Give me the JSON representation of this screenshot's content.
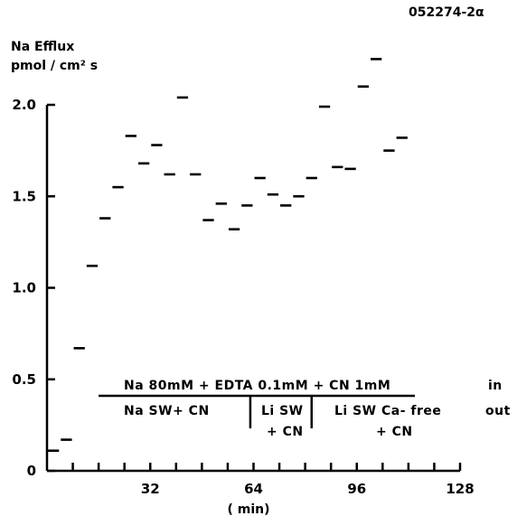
{
  "experiment_id": "052274-2α",
  "chart_data": {
    "type": "scatter",
    "mark": "horizontal-segment",
    "ylabel_line1": "Na Efflux",
    "ylabel_line2": "pmol / cm² s",
    "xlabel": "( min)",
    "xlim": [
      0,
      128
    ],
    "ylim": [
      0,
      2.0
    ],
    "x_ticks": [
      32,
      64,
      96,
      128
    ],
    "x_minor_ticks": [
      8,
      16,
      24,
      32,
      40,
      48,
      56,
      64,
      72,
      80,
      88,
      96,
      104,
      112,
      120,
      128
    ],
    "y_ticks": [
      {
        "value": 0,
        "label": "0"
      },
      {
        "value": 0.5,
        "label": "0.5"
      },
      {
        "value": 1.0,
        "label": "1.0"
      },
      {
        "value": 1.5,
        "label": "1.5"
      },
      {
        "value": 2.0,
        "label": "2.0"
      }
    ],
    "grid": false,
    "series": [
      {
        "points": [
          {
            "x0": 0,
            "x1": 4,
            "y": 0.11
          },
          {
            "x0": 4,
            "x1": 8,
            "y": 0.17
          },
          {
            "x0": 8,
            "x1": 12,
            "y": 0.67
          },
          {
            "x0": 12,
            "x1": 16,
            "y": 1.12
          },
          {
            "x0": 16,
            "x1": 20,
            "y": 1.38
          },
          {
            "x0": 20,
            "x1": 24,
            "y": 1.55
          },
          {
            "x0": 24,
            "x1": 28,
            "y": 1.83
          },
          {
            "x0": 28,
            "x1": 32,
            "y": 1.68
          },
          {
            "x0": 32,
            "x1": 36,
            "y": 1.78
          },
          {
            "x0": 36,
            "x1": 40,
            "y": 1.62
          },
          {
            "x0": 40,
            "x1": 44,
            "y": 2.04
          },
          {
            "x0": 44,
            "x1": 48,
            "y": 1.62
          },
          {
            "x0": 48,
            "x1": 52,
            "y": 1.37
          },
          {
            "x0": 52,
            "x1": 56,
            "y": 1.46
          },
          {
            "x0": 56,
            "x1": 60,
            "y": 1.32
          },
          {
            "x0": 60,
            "x1": 64,
            "y": 1.45
          },
          {
            "x0": 64,
            "x1": 68,
            "y": 1.6
          },
          {
            "x0": 68,
            "x1": 72,
            "y": 1.51
          },
          {
            "x0": 72,
            "x1": 76,
            "y": 1.45
          },
          {
            "x0": 76,
            "x1": 80,
            "y": 1.5
          },
          {
            "x0": 80,
            "x1": 84,
            "y": 1.6
          },
          {
            "x0": 84,
            "x1": 88,
            "y": 1.99
          },
          {
            "x0": 88,
            "x1": 92,
            "y": 1.66
          },
          {
            "x0": 92,
            "x1": 96,
            "y": 1.65
          },
          {
            "x0": 96,
            "x1": 100,
            "y": 2.1
          },
          {
            "x0": 100,
            "x1": 104,
            "y": 2.25
          },
          {
            "x0": 104,
            "x1": 108,
            "y": 1.75
          },
          {
            "x0": 108,
            "x1": 112,
            "y": 1.82
          }
        ]
      }
    ],
    "annotations": {
      "top_label": "Na 80mM + EDTA  0.1mM + CN  1mM",
      "in_label": "in",
      "out_label": "out",
      "bar_x_range": [
        16,
        114
      ],
      "dividers_x": [
        63,
        82
      ],
      "segments": [
        {
          "line1": "Na  SW+ CN",
          "line2": ""
        },
        {
          "line1": "Li   SW",
          "line2": "+ CN"
        },
        {
          "line1": "Li  SW  Ca- free",
          "line2": "+ CN"
        }
      ]
    }
  }
}
